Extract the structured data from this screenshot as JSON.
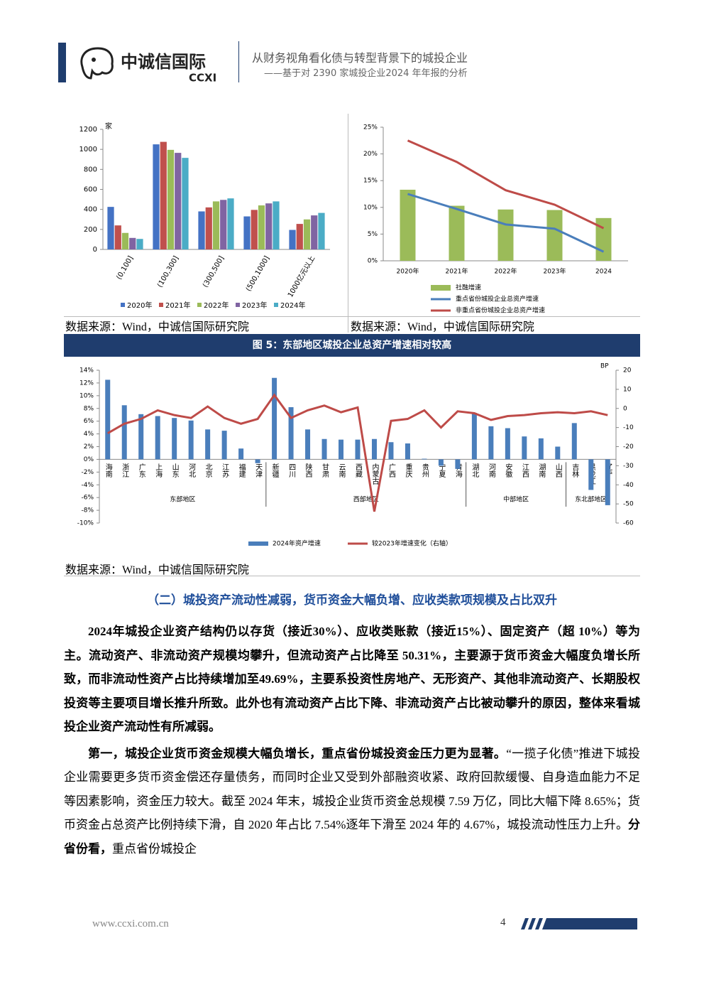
{
  "header": {
    "logo": "中诚信国际",
    "logo_en": "CCXI",
    "title": "从财务视角看化债与转型背景下的城投企业",
    "subtitle": "——基于对 2390 家城投企业2024 年年报的分析"
  },
  "chart_data": [
    {
      "type": "bar",
      "y_unit": "家",
      "categories": [
        "(0,100]",
        "(100,300]",
        "(300,500]",
        "(500,1000]",
        "1000亿元以上"
      ],
      "series": [
        {
          "name": "2020年",
          "color": "#4472c4",
          "values": [
            425,
            1050,
            380,
            330,
            195
          ]
        },
        {
          "name": "2021年",
          "color": "#c0504d",
          "values": [
            240,
            1075,
            420,
            395,
            255
          ]
        },
        {
          "name": "2022年",
          "color": "#9bbb59",
          "values": [
            165,
            995,
            480,
            440,
            300
          ]
        },
        {
          "name": "2023年",
          "color": "#8064a2",
          "values": [
            115,
            965,
            495,
            460,
            340
          ]
        },
        {
          "name": "2024年",
          "color": "#4bacc6",
          "values": [
            105,
            915,
            510,
            480,
            365
          ]
        }
      ],
      "ylim": [
        0,
        1200
      ],
      "yticks": [
        0,
        200,
        400,
        600,
        800,
        1000,
        1200
      ],
      "legend": "bottom"
    },
    {
      "type": "bar-line",
      "categories": [
        "2020年",
        "2021年",
        "2022年",
        "2023年",
        "2024"
      ],
      "series": [
        {
          "name": "社融增速",
          "type": "bar",
          "color": "#9bbb59",
          "values": [
            13.3,
            10.3,
            9.6,
            9.5,
            8.0
          ]
        },
        {
          "name": "重点省份城投企业总资产增速",
          "type": "line",
          "color": "#4a7ebb",
          "values": [
            12.5,
            9.7,
            6.8,
            6.0,
            1.7
          ]
        },
        {
          "name": "非重点省份城投企业总资产增速",
          "type": "line",
          "color": "#be4b48",
          "values": [
            22.5,
            18.5,
            13.2,
            10.5,
            6.1
          ]
        }
      ],
      "ylim": [
        0,
        25
      ],
      "yticks": [
        {
          "value": 0,
          "label": "0%"
        },
        {
          "value": 5,
          "label": "5%"
        },
        {
          "value": 10,
          "label": "10%"
        },
        {
          "value": 15,
          "label": "15%"
        },
        {
          "value": 20,
          "label": "20%"
        },
        {
          "value": 25,
          "label": "25%"
        }
      ],
      "legend": "bottom"
    },
    {
      "type": "bar-line-y2",
      "title": "图 5：东部地区城投企业总资产增速相对较高",
      "categories": [
        "海南",
        "浙江",
        "广东",
        "上海",
        "山东",
        "河北",
        "北京",
        "江苏",
        "福建",
        "天津",
        "新疆",
        "四川",
        "陕西",
        "甘肃",
        "云南",
        "西藏",
        "内蒙古",
        "广西",
        "重庆",
        "贵州",
        "宁夏",
        "青海",
        "湖北",
        "河南",
        "安徽",
        "江西",
        "湖南",
        "山西",
        "吉林",
        "黑龙江",
        "辽宁"
      ],
      "groups": [
        "东部地区",
        "西部地区",
        "中部地区",
        "东北部地区"
      ],
      "series": [
        {
          "name": "2024年资产增速",
          "type": "bar",
          "color": "#4a7ebb",
          "values": [
            12.5,
            8.5,
            7.1,
            6.8,
            6.5,
            6.1,
            4.7,
            4.5,
            1.7,
            -0.6,
            12.8,
            8.2,
            4.7,
            3.2,
            3.1,
            3.1,
            3.2,
            2.7,
            2.5,
            0.1,
            -1.0,
            -1.5,
            7.3,
            5.2,
            4.9,
            3.6,
            3.3,
            2.0,
            5.7,
            -4.8,
            -7.2
          ]
        },
        {
          "name": "较2023年增速变化（右轴）",
          "type": "line",
          "axis": "y2",
          "color": "#be4b48",
          "values": [
            -13,
            -8,
            -5.5,
            -1,
            -3.5,
            -5,
            1,
            -5,
            -8,
            -5.5,
            7,
            -5,
            -1,
            1.5,
            -2,
            0.5,
            -54,
            -6.5,
            -5.5,
            -1,
            -10,
            -1.5,
            -2.5,
            -6,
            -4,
            -3.5,
            -2.5,
            -2,
            -2.5,
            -1.5,
            -3.5
          ]
        }
      ],
      "ylim": [
        -10,
        14
      ],
      "yticks": [
        {
          "value": -10,
          "label": "-10%"
        },
        {
          "value": -8,
          "label": "-8%"
        },
        {
          "value": -6,
          "label": "-6%"
        },
        {
          "value": -4,
          "label": "-4%"
        },
        {
          "value": -2,
          "label": "-2%"
        },
        {
          "value": 0,
          "label": "0%"
        },
        {
          "value": 2,
          "label": "2%"
        },
        {
          "value": 4,
          "label": "4%"
        },
        {
          "value": 6,
          "label": "6%"
        },
        {
          "value": 8,
          "label": "8%"
        },
        {
          "value": 10,
          "label": "10%"
        },
        {
          "value": 12,
          "label": "12%"
        },
        {
          "value": 14,
          "label": "14%"
        }
      ],
      "y2_label": "BP",
      "y2lim": [
        -60,
        20
      ],
      "y2ticks": [
        -60,
        -50,
        -40,
        -30,
        -20,
        -10,
        0,
        10,
        20
      ],
      "legend": "bottom"
    }
  ],
  "sources": [
    "数据来源：Wind，中诚信国际研究院",
    "数据来源：Wind，中诚信国际研究院",
    "数据来源：Wind，中诚信国际研究院"
  ],
  "section_heading": "（二）城投资产流动性减弱，货币资金大幅负增、应收类款项规模及占比双升",
  "paragraphs": [
    [
      {
        "text": "2024年城投企业资产结构仍以存货（接近30%）、应收类账款（接近15%）、固定资产（超 10%）等为主。流动资产、非流动资产规模均攀升，但流动资产占比降至 50.31%，主要源于货币资金大幅度负增长所致，而非流动性资产占比持续增加至49.69%，主要系投资性房地产、无形资产、其他非流动资产、长期股权投资等主要项目增长推升所致。此外也有流动资产占比下降、非流动资产占比被动攀升的原因，整体来看城投企业资产流动性有所减弱。",
        "bold": true
      }
    ],
    [
      {
        "text": "第一，城投企业货币资金规模大幅负增长，重点省份城投资金压力更为显著。",
        "bold": true
      },
      {
        "text": "“一揽子化债”推进下城投企业需要更多货币资金偿还存量债务，而同时企业又受到外部融资收紧、政府回款缓慢、自身造血能力不足等因素影响，资金压力较大。截至 2024 年末，城投企业货币资金总规模 7.59 万亿，同比大幅下降 8.65%；货币资金占总资产比例持续下滑，自 2020 年占比 7.54%逐年下滑至 2024 年的 4.67%，城投流动性压力上升。",
        "bold": false
      },
      {
        "text": "分省份看，",
        "bold": true
      },
      {
        "text": "重点省份城投企",
        "bold": false
      }
    ]
  ],
  "footer": {
    "url": "www.ccxi.com.cn",
    "page": "4"
  }
}
